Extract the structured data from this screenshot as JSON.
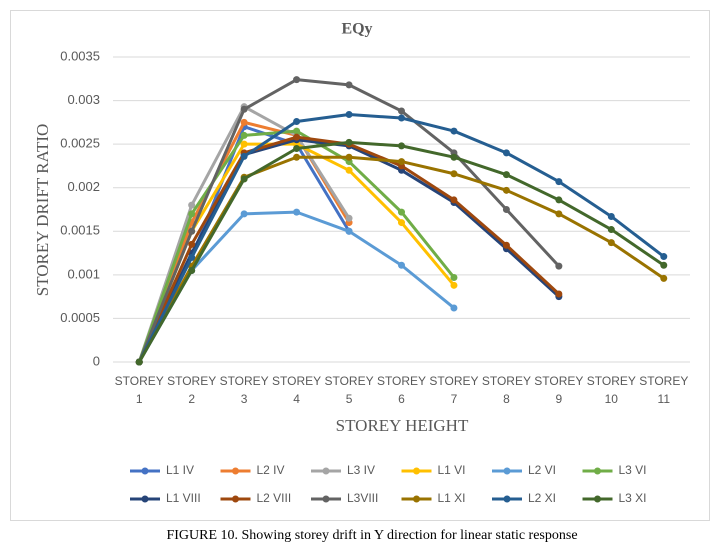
{
  "chart_data": {
    "type": "line",
    "title": "EQy",
    "x_label": "STOREY HEIGHT",
    "y_label": "STOREY DRIFT RATIO",
    "caption": "FIGURE 10. Showing storey drift in Y direction for linear static response",
    "categories": [
      "STOREY 1",
      "STOREY 2",
      "STOREY 3",
      "STOREY 4",
      "STOREY 5",
      "STOREY 6",
      "STOREY 7",
      "STOREY 8",
      "STOREY 9",
      "STOREY 10",
      "STOREY 11"
    ],
    "ylim": [
      0,
      0.0035
    ],
    "yticks": [
      0,
      0.0005,
      0.001,
      0.0015,
      0.002,
      0.0025,
      0.003,
      0.0035
    ],
    "grid": true,
    "legend": "bottom",
    "series": [
      {
        "name": "L1 IV",
        "color": "#4472c4",
        "values": [
          0,
          0.0012,
          0.0027,
          0.0025,
          0.0015,
          null,
          null,
          null,
          null,
          null,
          null
        ]
      },
      {
        "name": "L2 IV",
        "color": "#ed7d31",
        "values": [
          0,
          0.0016,
          0.00275,
          0.0026,
          0.0016,
          null,
          null,
          null,
          null,
          null,
          null
        ]
      },
      {
        "name": "L3 IV",
        "color": "#a5a5a5",
        "values": [
          0,
          0.0018,
          0.00293,
          0.0026,
          0.00165,
          null,
          null,
          null,
          null,
          null,
          null
        ]
      },
      {
        "name": "L1 VI",
        "color": "#ffc000",
        "values": [
          0,
          0.0015,
          0.0025,
          0.0025,
          0.0022,
          0.0016,
          0.00088,
          null,
          null,
          null,
          null
        ]
      },
      {
        "name": "L2 VI",
        "color": "#5b9bd5",
        "values": [
          0,
          0.00105,
          0.0017,
          0.00172,
          0.0015,
          0.00111,
          0.00062,
          null,
          null,
          null,
          null
        ]
      },
      {
        "name": "L3 VI",
        "color": "#70ad47",
        "values": [
          0,
          0.0017,
          0.0026,
          0.00265,
          0.0023,
          0.00172,
          0.00097,
          null,
          null,
          null,
          null
        ]
      },
      {
        "name": "L1 VIII",
        "color": "#264478",
        "values": [
          0,
          0.00125,
          0.00238,
          0.00255,
          0.00248,
          0.0022,
          0.00183,
          0.0013,
          0.00075,
          null,
          null
        ]
      },
      {
        "name": "L2 VIII",
        "color": "#9e480e",
        "values": [
          0,
          0.00135,
          0.0024,
          0.00258,
          0.0025,
          0.00225,
          0.00186,
          0.00134,
          0.00078,
          null,
          null
        ]
      },
      {
        "name": "L3VIII",
        "color": "#636363",
        "values": [
          0,
          0.0015,
          0.0029,
          0.00324,
          0.00318,
          0.00288,
          0.0024,
          0.00175,
          0.0011,
          null,
          null
        ]
      },
      {
        "name": "L1 XI",
        "color": "#997300",
        "values": [
          0,
          0.0011,
          0.00212,
          0.00235,
          0.00235,
          0.0023,
          0.00216,
          0.00197,
          0.0017,
          0.00137,
          0.00096
        ]
      },
      {
        "name": "L2 XI",
        "color": "#255e91",
        "values": [
          0,
          0.0012,
          0.00236,
          0.00276,
          0.00284,
          0.0028,
          0.00265,
          0.0024,
          0.00207,
          0.00167,
          0.00121
        ]
      },
      {
        "name": "L3 XI",
        "color": "#43682b",
        "values": [
          0,
          0.00105,
          0.0021,
          0.00245,
          0.00252,
          0.00248,
          0.00235,
          0.00215,
          0.00186,
          0.00152,
          0.00111
        ]
      }
    ]
  }
}
